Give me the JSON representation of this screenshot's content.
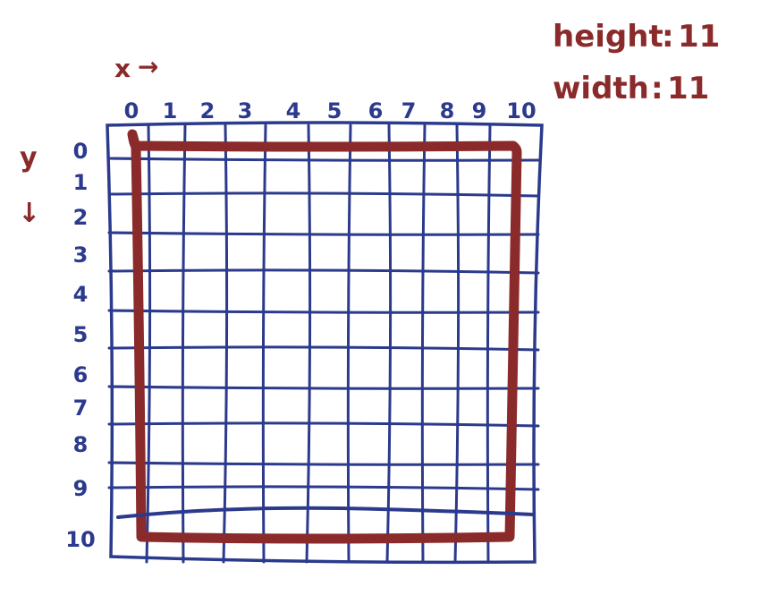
{
  "dimensions": {
    "height_label": "height",
    "height_value": "11",
    "width_label": "width",
    "width_value": "11",
    "separator": ":"
  },
  "axes": {
    "x_label": "x",
    "x_arrow": "→",
    "y_label": "y",
    "y_arrow": "↓",
    "x_ticks": [
      "0",
      "1",
      "2",
      "3",
      "4",
      "5",
      "6",
      "7",
      "8",
      "9",
      "10"
    ],
    "y_ticks": [
      "0",
      "1",
      "2",
      "3",
      "4",
      "5",
      "6",
      "7",
      "8",
      "9",
      "10"
    ]
  },
  "grid": {
    "columns": 11,
    "rows": 11
  },
  "highlight": {
    "shape": "square",
    "from": {
      "x": 0,
      "y": 0
    },
    "to": {
      "x": 10,
      "y": 10
    }
  },
  "colors": {
    "ink_blue": "#2b3a8c",
    "ink_red": "#8b2a2a"
  }
}
